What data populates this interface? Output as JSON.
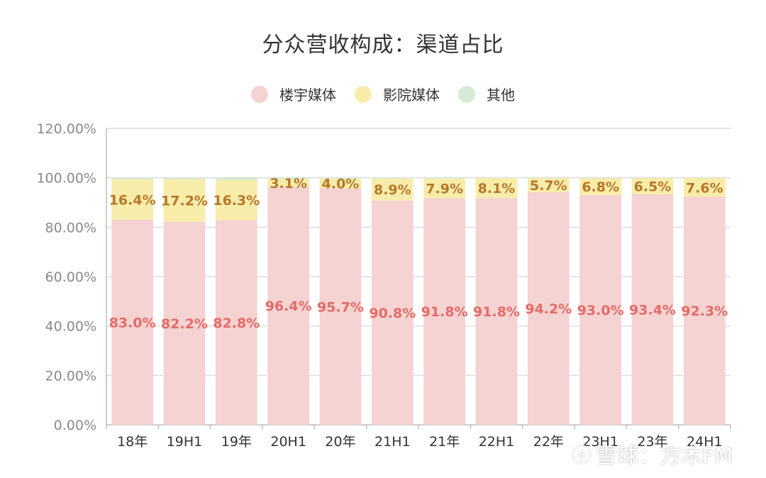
{
  "chart_data": {
    "type": "bar",
    "stacked": true,
    "title": "分众营收构成：渠道占比",
    "categories": [
      "18年",
      "19H1",
      "19年",
      "20H1",
      "20年",
      "21H1",
      "21年",
      "22H1",
      "22年",
      "23H1",
      "23年",
      "24H1"
    ],
    "series": [
      {
        "name": "楼宇媒体",
        "color": "#f4d3d2",
        "label_color": "#e46b67",
        "values": [
          83.0,
          82.2,
          82.8,
          96.4,
          95.7,
          90.8,
          91.8,
          91.8,
          94.2,
          93.0,
          93.4,
          92.3
        ],
        "labels": [
          "83.0%",
          "82.2%",
          "82.8%",
          "96.4%",
          "95.7%",
          "90.8%",
          "91.8%",
          "91.8%",
          "94.2%",
          "93.0%",
          "93.4%",
          "92.3%"
        ]
      },
      {
        "name": "影院媒体",
        "color": "#f8ecaa",
        "label_color": "#b5782b",
        "values": [
          16.4,
          17.2,
          16.3,
          3.1,
          4.0,
          8.9,
          7.9,
          8.1,
          5.7,
          6.8,
          6.5,
          7.6
        ],
        "labels": [
          "16.4%",
          "17.2%",
          "16.3%",
          "3.1%",
          "4.0%",
          "8.9%",
          "7.9%",
          "8.1%",
          "5.7%",
          "6.8%",
          "6.5%",
          "7.6%"
        ]
      },
      {
        "name": "其他",
        "color": "#d6ebd6",
        "values": [
          0.6,
          0.6,
          0.9,
          0.5,
          0.3,
          0.3,
          0.3,
          0.1,
          0.1,
          0.2,
          0.1,
          0.1
        ]
      }
    ],
    "ylim": [
      0,
      120
    ],
    "yticks": [
      "0.00%",
      "20.00%",
      "40.00%",
      "60.00%",
      "80.00%",
      "100.00%",
      "120.00%"
    ],
    "grid": true,
    "legend_position": "top"
  },
  "watermark": {
    "logo": "ⓢ",
    "text": "雪球：方木FM"
  }
}
